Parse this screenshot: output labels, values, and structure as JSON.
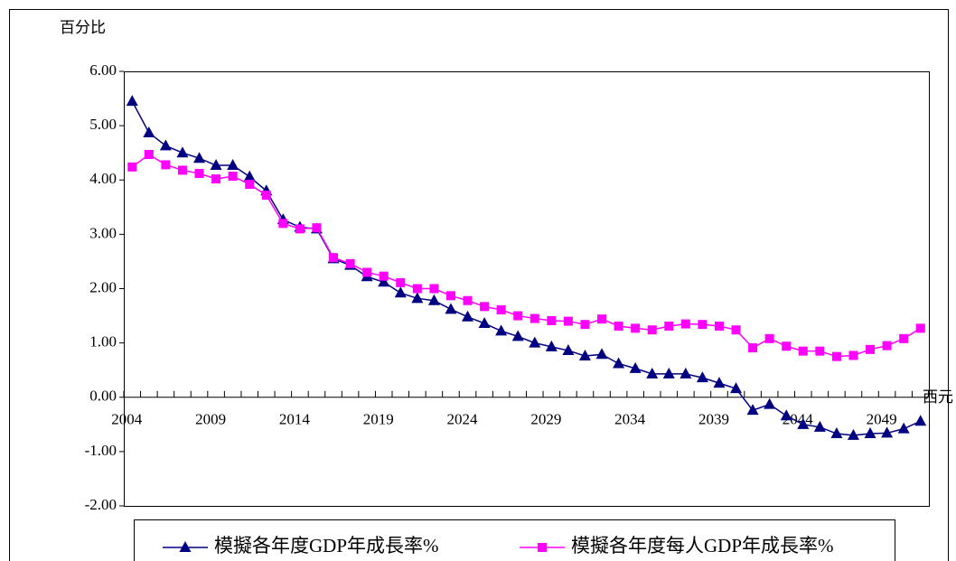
{
  "chart_data": {
    "type": "line",
    "y_label": "百分比",
    "x_label": "西元",
    "x": [
      2004,
      2005,
      2006,
      2007,
      2008,
      2009,
      2010,
      2011,
      2012,
      2013,
      2014,
      2015,
      2016,
      2017,
      2018,
      2019,
      2020,
      2021,
      2022,
      2023,
      2024,
      2025,
      2026,
      2027,
      2028,
      2029,
      2030,
      2031,
      2032,
      2033,
      2034,
      2035,
      2036,
      2037,
      2038,
      2039,
      2040,
      2041,
      2042,
      2043,
      2044,
      2045,
      2046,
      2047,
      2048,
      2049,
      2050,
      2051
    ],
    "xlim": [
      2003.5,
      2051.5
    ],
    "xticks": [
      2004,
      2009,
      2014,
      2019,
      2024,
      2029,
      2034,
      2039,
      2044,
      2049
    ],
    "ylim": [
      -2,
      6
    ],
    "yticks": [
      {
        "value": -2,
        "label": "-2.00"
      },
      {
        "value": -1,
        "label": "-1.00"
      },
      {
        "value": 0,
        "label": "0.00"
      },
      {
        "value": 1,
        "label": "1.00"
      },
      {
        "value": 2,
        "label": "2.00"
      },
      {
        "value": 3,
        "label": "3.00"
      },
      {
        "value": 4,
        "label": "4.00"
      },
      {
        "value": 5,
        "label": "5.00"
      },
      {
        "value": 6,
        "label": "6.00"
      }
    ],
    "legend": "bottom",
    "series": [
      {
        "name": "模擬各年度GDP年成長率%",
        "color": "#000080",
        "marker": "triangle",
        "values": [
          5.45,
          4.87,
          4.63,
          4.5,
          4.4,
          4.27,
          4.27,
          4.06,
          3.8,
          3.27,
          3.13,
          3.1,
          2.55,
          2.43,
          2.22,
          2.12,
          1.92,
          1.82,
          1.78,
          1.62,
          1.48,
          1.36,
          1.22,
          1.12,
          1.0,
          0.93,
          0.86,
          0.76,
          0.79,
          0.62,
          0.53,
          0.43,
          0.43,
          0.43,
          0.36,
          0.26,
          0.16,
          -0.24,
          -0.13,
          -0.34,
          -0.5,
          -0.55,
          -0.67,
          -0.7,
          -0.67,
          -0.66,
          -0.58,
          -0.44
        ]
      },
      {
        "name": "模擬各年度每人GDP年成長率%",
        "color": "#ff00ff",
        "marker": "square",
        "values": [
          4.24,
          4.47,
          4.28,
          4.18,
          4.12,
          4.02,
          4.07,
          3.92,
          3.72,
          3.2,
          3.1,
          3.12,
          2.57,
          2.46,
          2.3,
          2.23,
          2.11,
          2.0,
          2.0,
          1.87,
          1.78,
          1.67,
          1.61,
          1.5,
          1.45,
          1.41,
          1.4,
          1.34,
          1.44,
          1.31,
          1.27,
          1.24,
          1.31,
          1.35,
          1.34,
          1.31,
          1.24,
          0.91,
          1.08,
          0.94,
          0.85,
          0.85,
          0.75,
          0.77,
          0.88,
          0.95,
          1.08,
          1.27
        ]
      }
    ]
  }
}
